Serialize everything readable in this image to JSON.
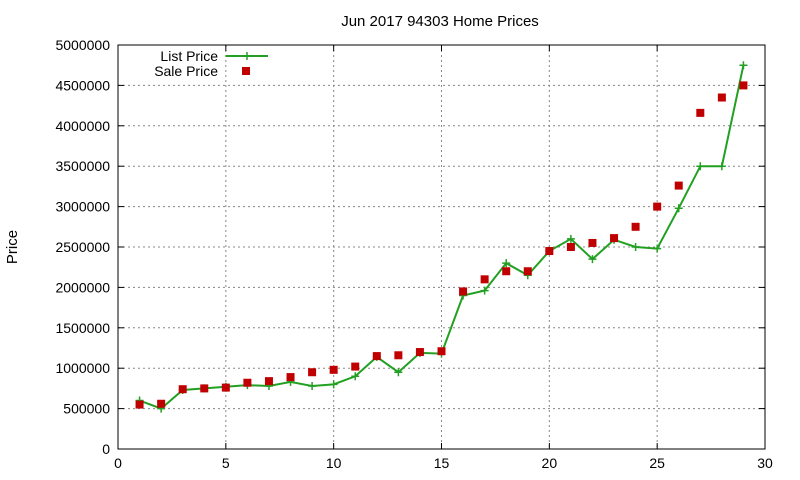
{
  "chart_data": {
    "type": "line",
    "title": "Jun 2017 94303 Home Prices",
    "xlabel": "",
    "ylabel": "Price",
    "xlim": [
      0,
      30
    ],
    "ylim": [
      0,
      5000000
    ],
    "x_ticks": [
      0,
      5,
      10,
      15,
      20,
      25,
      30
    ],
    "y_ticks": [
      0,
      500000,
      1000000,
      1500000,
      2000000,
      2500000,
      3000000,
      3500000,
      4000000,
      4500000,
      5000000
    ],
    "grid": true,
    "legend_position": "top-left",
    "series": [
      {
        "name": "List Price",
        "style": "line-with-plus-markers",
        "color": "#22a022",
        "x": [
          1,
          2,
          3,
          4,
          5,
          6,
          7,
          8,
          9,
          10,
          11,
          12,
          13,
          14,
          15,
          16,
          17,
          18,
          19,
          20,
          21,
          22,
          23,
          24,
          25,
          26,
          27,
          28,
          29
        ],
        "y": [
          600000,
          500000,
          730000,
          750000,
          770000,
          790000,
          780000,
          830000,
          780000,
          800000,
          900000,
          1140000,
          950000,
          1190000,
          1180000,
          1900000,
          1960000,
          2300000,
          2150000,
          2450000,
          2600000,
          2350000,
          2590000,
          2500000,
          2480000,
          2980000,
          3500000,
          3500000,
          4750000
        ]
      },
      {
        "name": "Sale Price",
        "style": "square-markers",
        "color": "#c00000",
        "x": [
          1,
          2,
          3,
          4,
          5,
          6,
          7,
          8,
          9,
          10,
          11,
          12,
          13,
          14,
          15,
          16,
          17,
          18,
          19,
          20,
          21,
          22,
          23,
          24,
          25,
          26,
          27,
          28,
          29
        ],
        "y": [
          550000,
          560000,
          740000,
          750000,
          760000,
          820000,
          840000,
          890000,
          950000,
          980000,
          1020000,
          1150000,
          1160000,
          1200000,
          1210000,
          1950000,
          2100000,
          2200000,
          2200000,
          2450000,
          2500000,
          2550000,
          2610000,
          2750000,
          3000000,
          3260000,
          4160000,
          4350000,
          4500000
        ]
      }
    ]
  }
}
